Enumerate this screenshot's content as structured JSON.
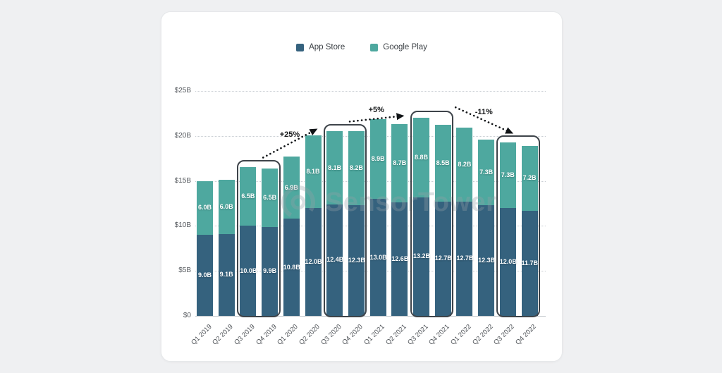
{
  "page": {
    "background": "#eff0f2"
  },
  "card": {
    "background": "#ffffff"
  },
  "legend": {
    "items": [
      {
        "label": "App Store",
        "color": "#35627E"
      },
      {
        "label": "Google Play",
        "color": "#4EA89F"
      }
    ]
  },
  "watermark": {
    "text": "SensorTower"
  },
  "chart_data": {
    "type": "bar",
    "stacked": true,
    "title": "",
    "categories": [
      "Q1 2019",
      "Q2 2019",
      "Q3 2019",
      "Q4 2019",
      "Q1 2020",
      "Q2 2020",
      "Q3 2020",
      "Q4 2020",
      "Q1 2021",
      "Q2 2021",
      "Q3 2021",
      "Q4 2021",
      "Q1 2022",
      "Q2 2022",
      "Q3 2022",
      "Q4 2022"
    ],
    "series": [
      {
        "name": "App Store",
        "color": "#35627E",
        "values": [
          9.0,
          9.1,
          10.0,
          9.9,
          10.8,
          12.0,
          12.4,
          12.3,
          13.0,
          12.6,
          13.2,
          12.7,
          12.7,
          12.3,
          12.0,
          11.7
        ]
      },
      {
        "name": "Google Play",
        "color": "#4EA89F",
        "values": [
          6.0,
          6.0,
          6.5,
          6.5,
          6.9,
          8.1,
          8.1,
          8.2,
          8.9,
          8.7,
          8.8,
          8.5,
          8.2,
          7.3,
          7.3,
          7.2
        ]
      }
    ],
    "value_label_suffix": "B",
    "y_axis": {
      "ticks": [
        0,
        5,
        10,
        15,
        20,
        25
      ],
      "tick_labels": [
        "$0",
        "$5B",
        "$10B",
        "$15B",
        "$20B",
        "$25B"
      ],
      "min": 0,
      "max": 25
    },
    "grid": "dotted horizontal",
    "legend_position": "top center",
    "highlights": [
      {
        "from": "Q3 2019",
        "to": "Q4 2019"
      },
      {
        "from": "Q3 2020",
        "to": "Q4 2020"
      },
      {
        "from": "Q3 2021",
        "to": "Q4 2021"
      },
      {
        "from": "Q3 2022",
        "to": "Q4 2022"
      }
    ],
    "annotations": [
      {
        "label": "+25%",
        "from_highlight": 0,
        "to_highlight": 1,
        "direction": "up"
      },
      {
        "label": "+5%",
        "from_highlight": 1,
        "to_highlight": 2,
        "direction": "up"
      },
      {
        "label": "-11%",
        "from_highlight": 2,
        "to_highlight": 3,
        "direction": "down"
      }
    ]
  }
}
